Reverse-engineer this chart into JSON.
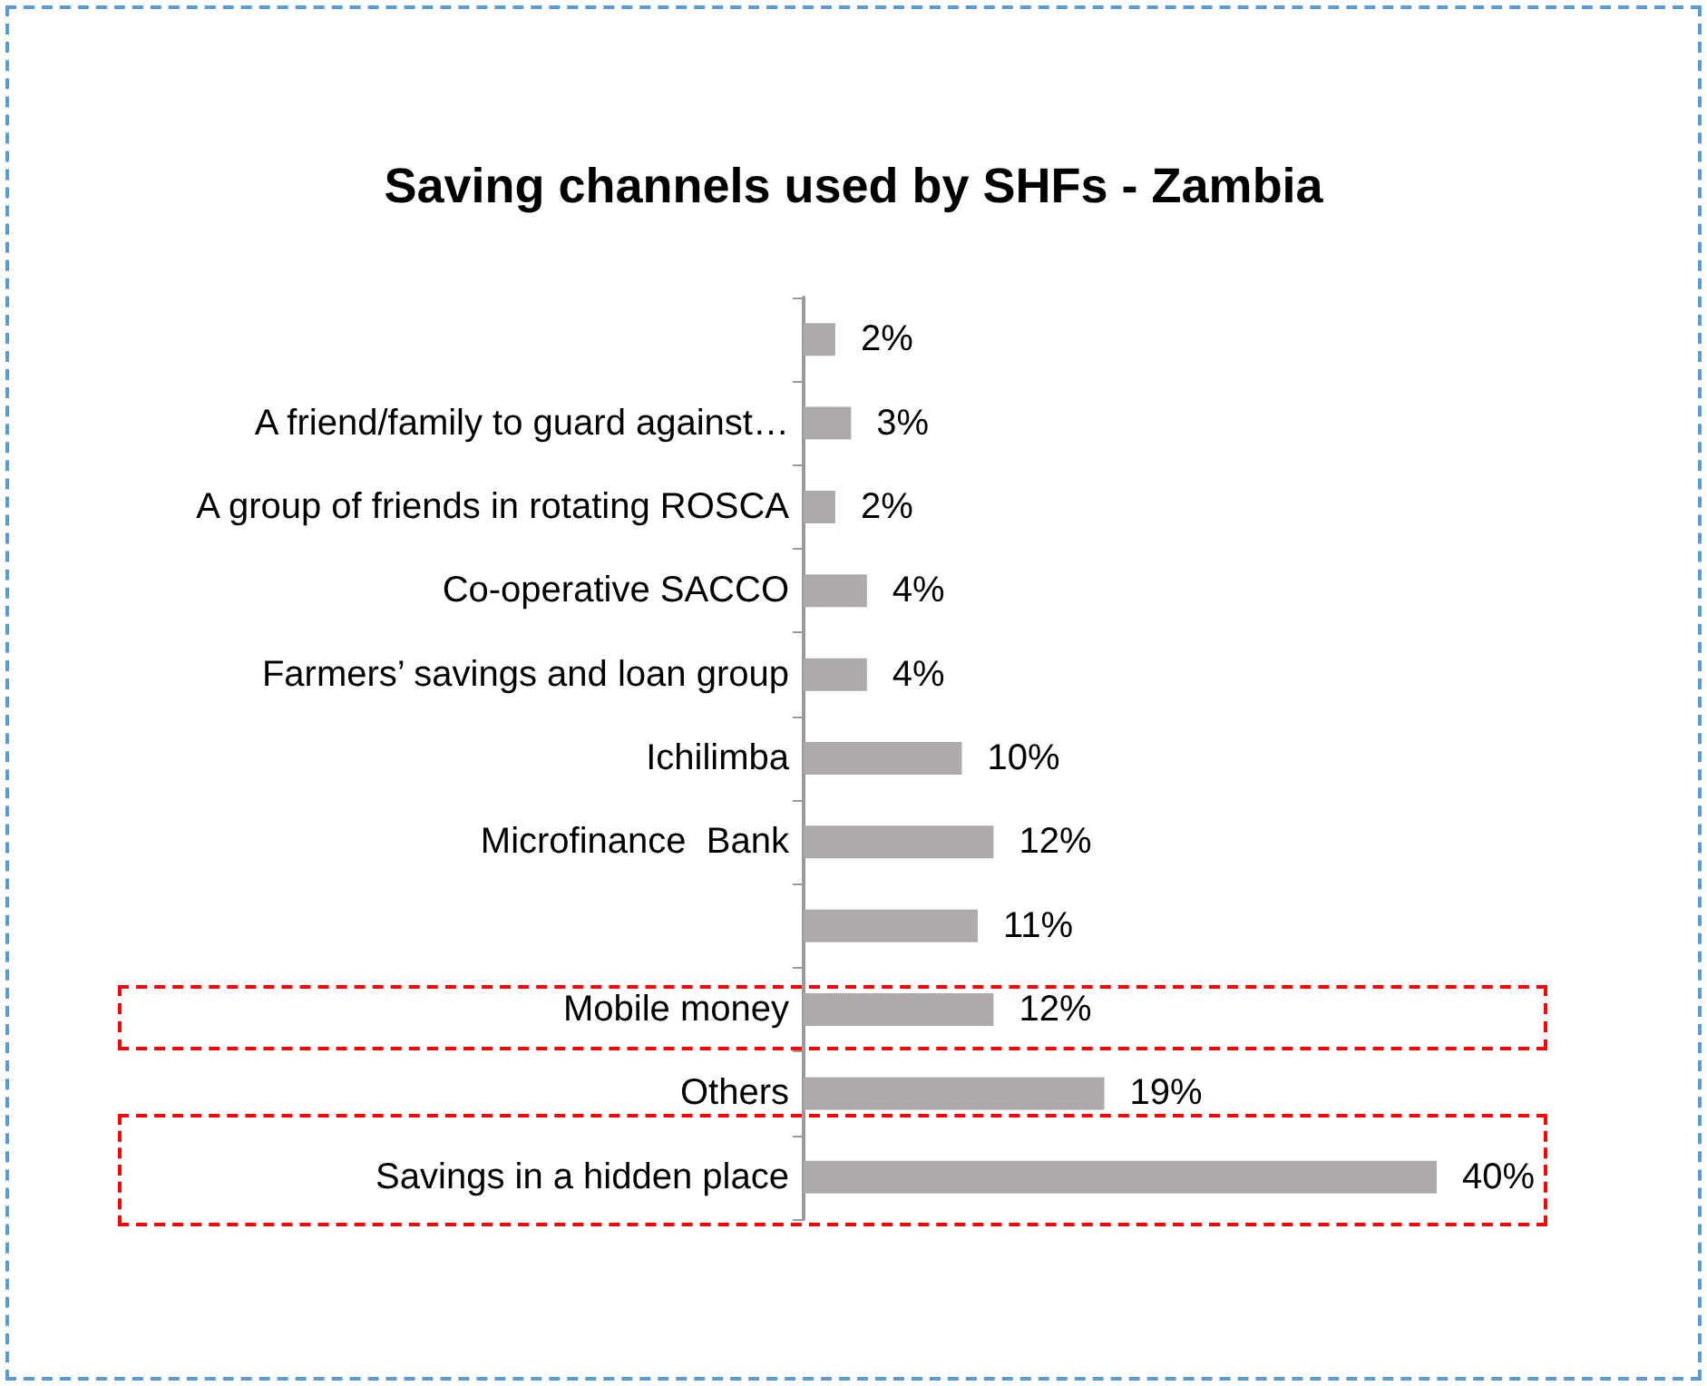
{
  "chart_data": {
    "type": "bar",
    "orientation": "horizontal",
    "title": "Saving channels used by SHFs - Zambia",
    "categories": [
      null,
      "A friend/family to guard against…",
      "A group of friends in rotating ROSCA",
      "Co-operative SACCO",
      "Farmers’ savings and loan group",
      "Ichilimba",
      "Microfinance  Bank",
      null,
      "Mobile money",
      "Others",
      "Savings in a hidden place"
    ],
    "values": [
      2,
      3,
      2,
      4,
      4,
      10,
      12,
      11,
      12,
      19,
      40
    ],
    "value_labels": [
      "2%",
      "3%",
      "2%",
      "4%",
      "4%",
      "10%",
      "12%",
      "11%",
      "12%",
      "19%",
      "40%"
    ],
    "color": "#aeaaaa"
  }
}
